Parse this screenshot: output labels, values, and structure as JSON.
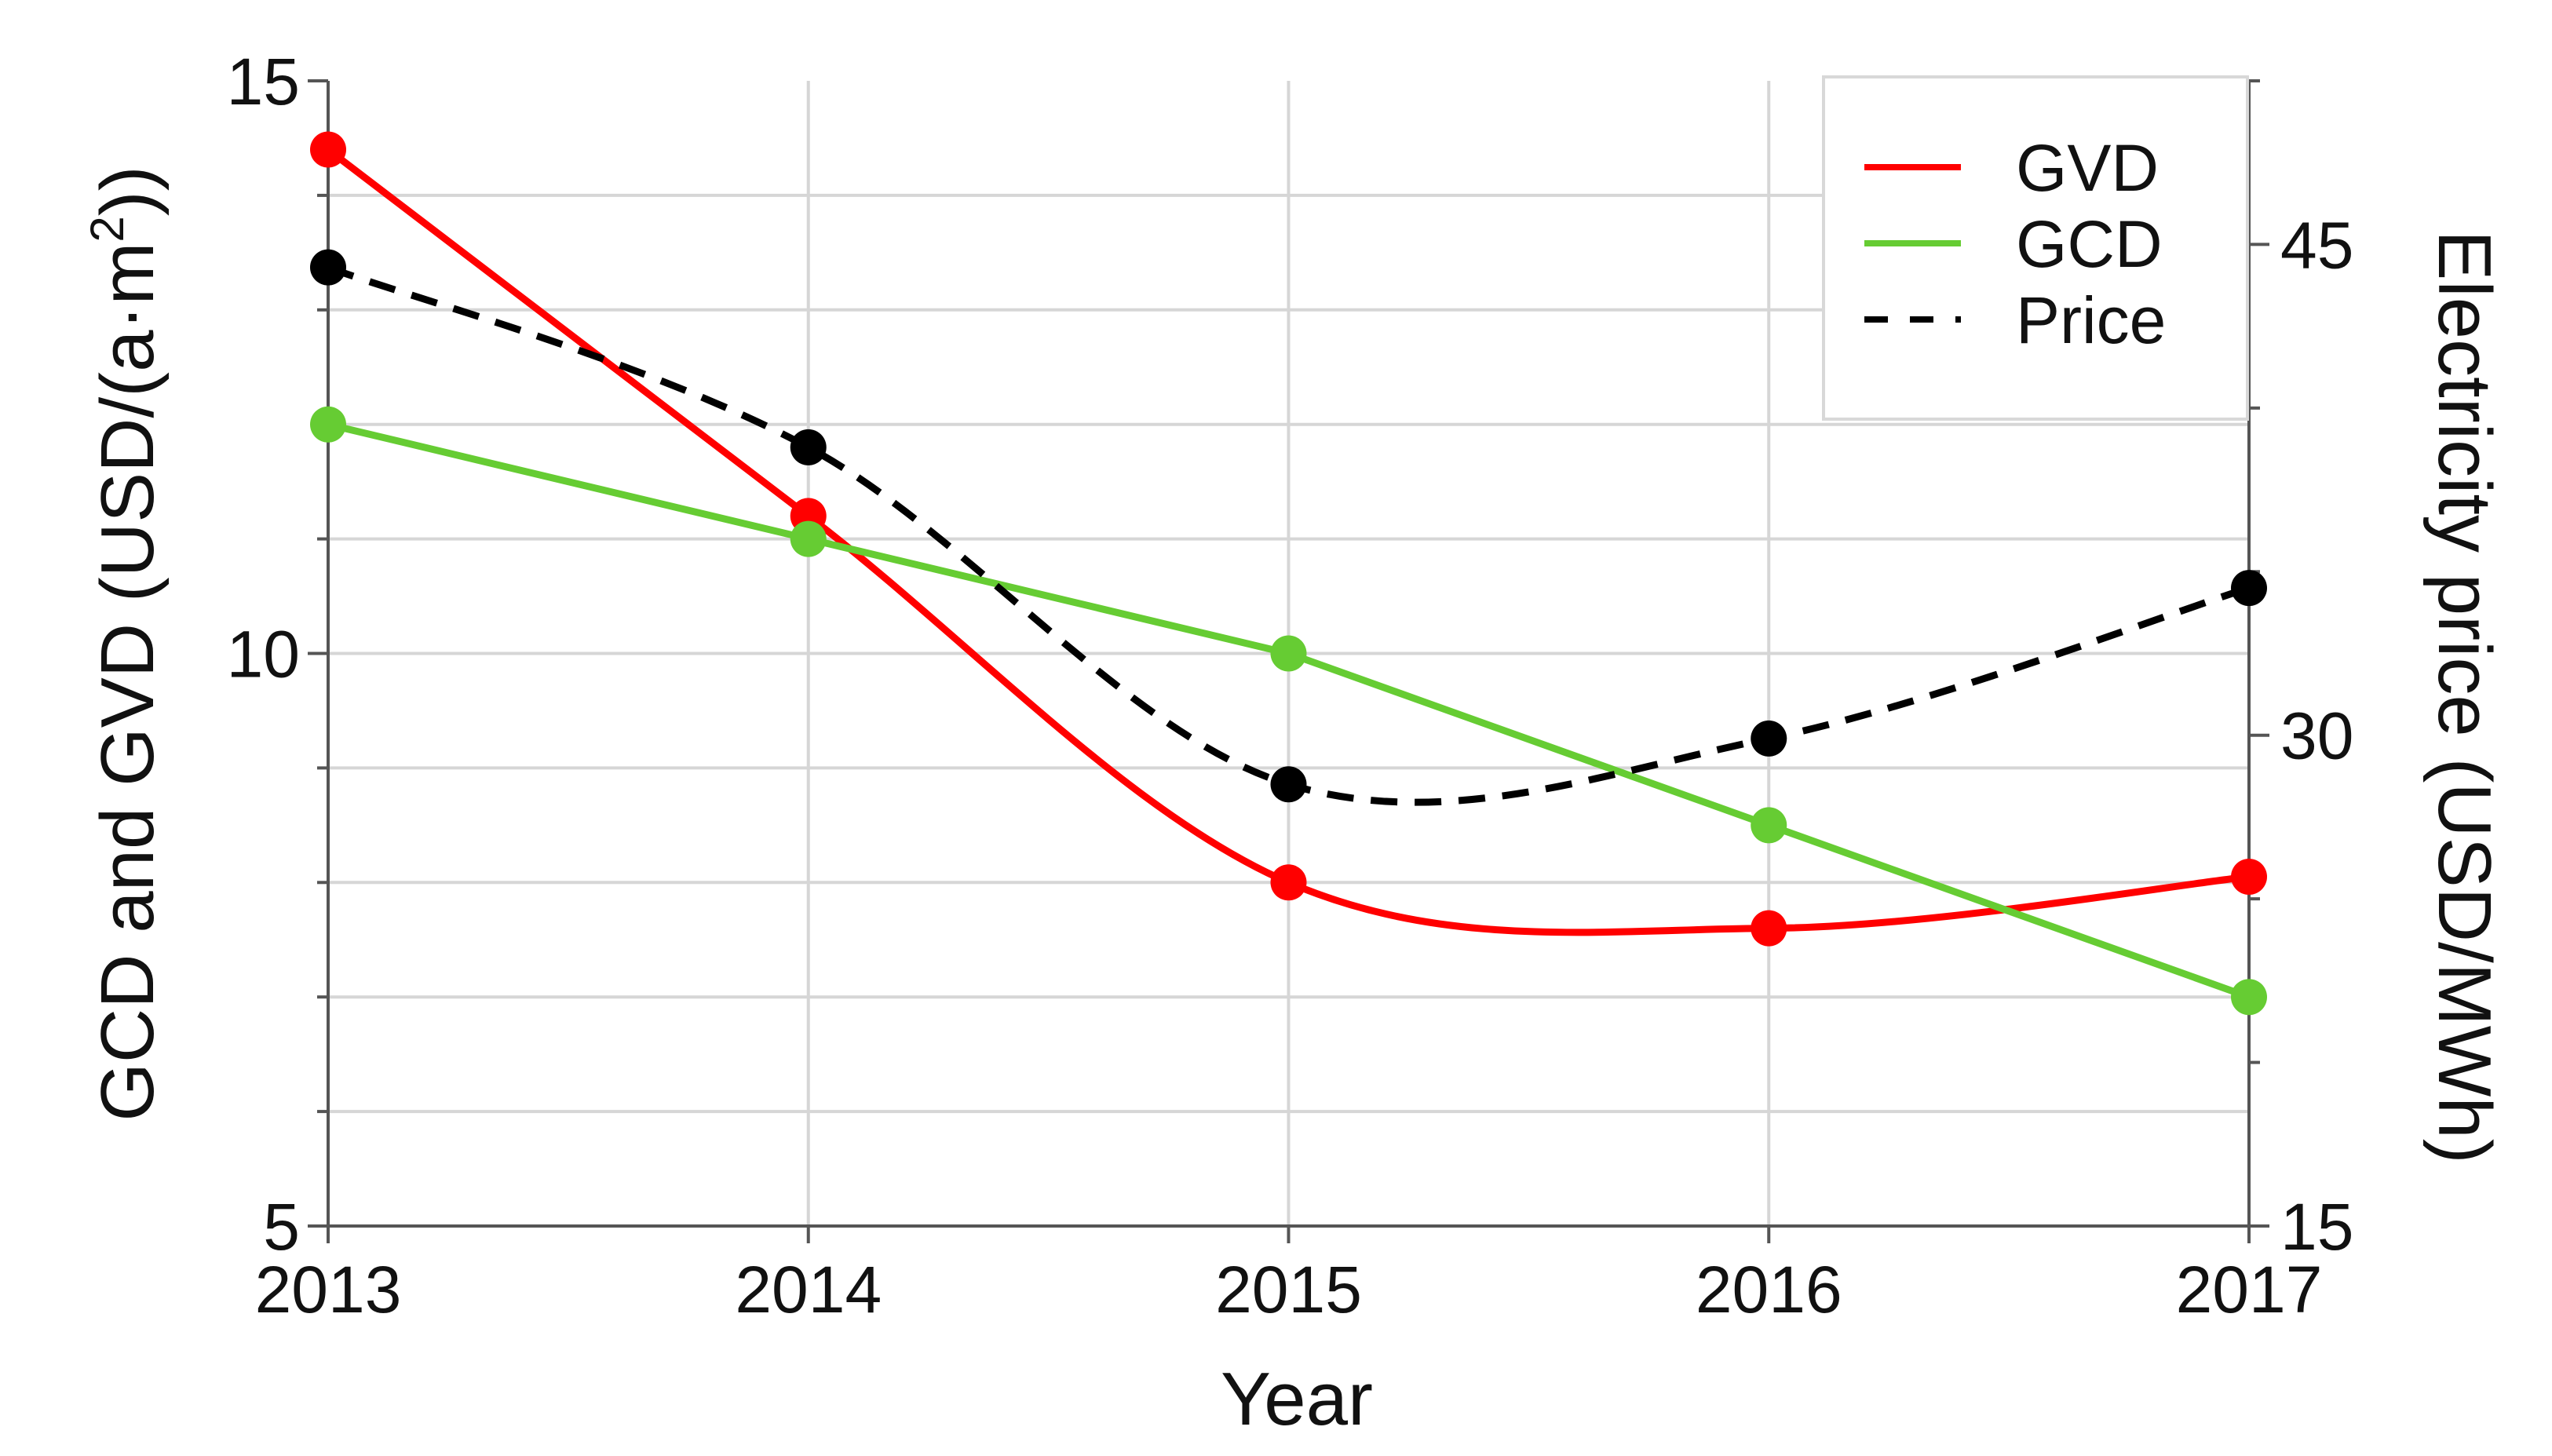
{
  "chart_data": {
    "type": "line",
    "x": [
      2013,
      2014,
      2015,
      2016,
      2017
    ],
    "x_tick_labels": [
      "2013",
      "2014",
      "2015",
      "2016",
      "2017"
    ],
    "xlabel": "Year",
    "ylabel_left_prefix": "GCD and GVD (USD/(a·m",
    "ylabel_left_sup": "2",
    "ylabel_left_suffix": "))",
    "ylabel_right": "Electricity price (USD/MWh)",
    "ylim_left": [
      5,
      15
    ],
    "y_left_ticks": [
      5,
      10,
      15
    ],
    "y_left_tick_labels": [
      "5",
      "10",
      "15"
    ],
    "ylim_right": [
      15,
      50
    ],
    "y_right_ticks": [
      15,
      30,
      45
    ],
    "y_right_tick_labels": [
      "15",
      "30",
      "45"
    ],
    "grid": true,
    "legend_position": "top-right",
    "series": [
      {
        "name": "GVD",
        "axis": "left",
        "color": "#ff0000",
        "dash": "solid",
        "values": [
          14.4,
          11.2,
          8.0,
          7.6,
          8.05
        ]
      },
      {
        "name": "GCD",
        "axis": "left",
        "color": "#66cc33",
        "dash": "solid",
        "values": [
          12.0,
          11.0,
          10.0,
          8.5,
          7.0
        ]
      },
      {
        "name": "Price",
        "axis": "right",
        "color": "#000000",
        "dash": "dashed",
        "values": [
          44.3,
          38.8,
          28.5,
          29.9,
          34.5
        ]
      }
    ]
  }
}
